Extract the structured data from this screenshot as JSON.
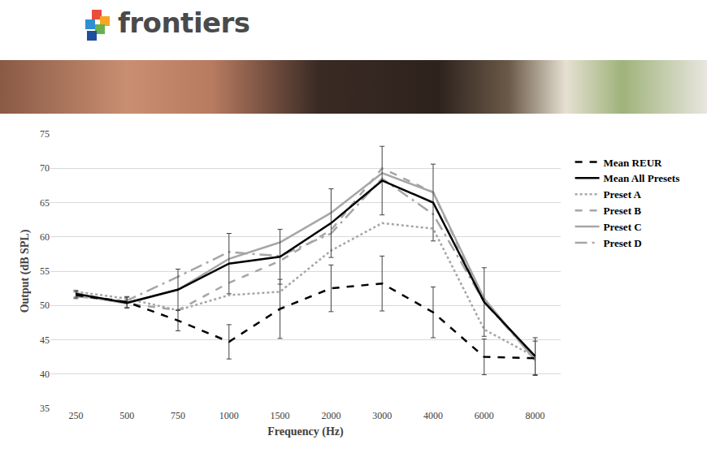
{
  "header": {
    "logo_text": "frontiers"
  },
  "chart_data": {
    "type": "line",
    "x_label": "Frequency (Hz)",
    "y_label": "Output (dB SPL)",
    "categories": [
      "250",
      "500",
      "750",
      "1000",
      "1500",
      "2000",
      "3000",
      "4000",
      "6000",
      "8000"
    ],
    "series": [
      {
        "name": "Mean REUR",
        "color": "#000000",
        "line_style": "dash",
        "values": [
          51.5,
          50.5,
          47.8,
          44.7,
          49.5,
          52.5,
          53.2,
          49.0,
          42.5,
          42.3
        ],
        "error": [
          0.5,
          0.8,
          1.5,
          2.5,
          4.3,
          3.4,
          4.0,
          3.7,
          2.6,
          2.5
        ]
      },
      {
        "name": "Mean All Presets",
        "color": "#000000",
        "line_style": "solid",
        "values": [
          51.7,
          50.4,
          52.3,
          56.1,
          57.1,
          62.0,
          68.2,
          65.0,
          50.5,
          42.6
        ],
        "error": [
          0.5,
          0.8,
          3.0,
          4.4,
          4.0,
          5.0,
          5.0,
          5.6,
          5.0,
          2.7
        ]
      },
      {
        "name": "Preset A",
        "color": "#a6a6a6",
        "line_style": "dot",
        "values": [
          52.0,
          51.0,
          49.3,
          51.5,
          52.0,
          58.0,
          62.0,
          61.2,
          46.5,
          42.5
        ]
      },
      {
        "name": "Preset B",
        "color": "#a6a6a6",
        "line_style": "dash",
        "values": [
          51.8,
          50.3,
          49.3,
          53.3,
          56.5,
          61.0,
          70.0,
          66.5,
          50.5,
          42.5
        ]
      },
      {
        "name": "Preset C",
        "color": "#a6a6a6",
        "line_style": "solid",
        "values": [
          51.5,
          50.3,
          52.3,
          56.8,
          59.2,
          63.5,
          69.3,
          66.5,
          51.0,
          42.0
        ]
      },
      {
        "name": "Preset D",
        "color": "#a6a6a6",
        "line_style": "longdashdot",
        "values": [
          51.3,
          50.7,
          54.2,
          57.8,
          57.2,
          60.5,
          68.5,
          63.3,
          50.5,
          42.2
        ]
      }
    ],
    "ylim": [
      35,
      75
    ],
    "yticks": [
      35,
      40,
      45,
      50,
      55,
      60,
      65,
      70,
      75
    ],
    "grid": true,
    "legend": "right"
  }
}
